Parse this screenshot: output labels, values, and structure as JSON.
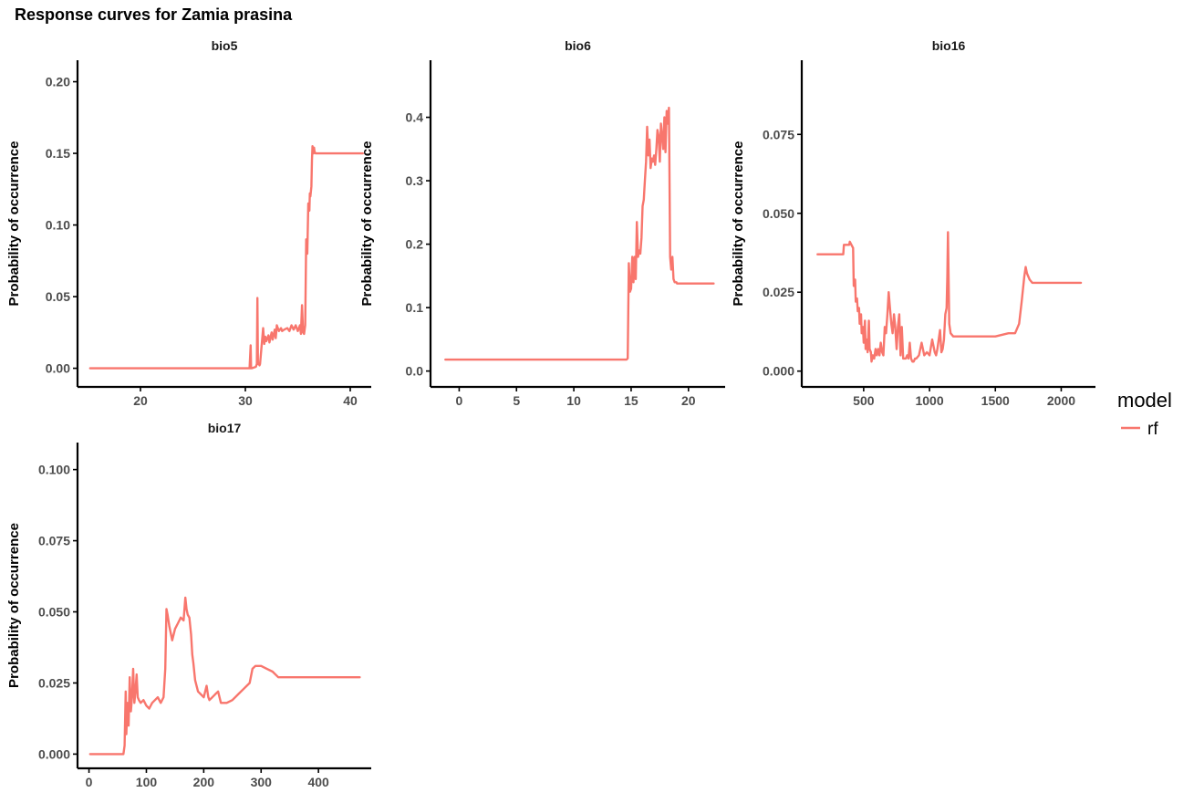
{
  "title": "Response curves for Zamia prasina",
  "legend": {
    "title": "model",
    "items": [
      {
        "label": "rf",
        "color": "#F8766D"
      }
    ]
  },
  "chart_data": [
    {
      "type": "line",
      "panel": "bio5",
      "ylabel": "Probability of occurrence",
      "xlim": [
        14,
        42
      ],
      "ylim": [
        -0.013,
        0.215
      ],
      "xticks": [
        20,
        30,
        40
      ],
      "yticks": [
        0.0,
        0.05,
        0.1,
        0.15,
        0.2
      ],
      "ytick_labels": [
        "0.00",
        "0.05",
        "0.10",
        "0.15",
        "0.20"
      ],
      "series": [
        {
          "name": "rf",
          "x": [
            15.2,
            30.4,
            30.5,
            30.55,
            30.6,
            31.0,
            31.1,
            31.15,
            31.2,
            31.3,
            31.35,
            31.4,
            31.6,
            31.7,
            31.8,
            31.9,
            32.0,
            32.2,
            32.3,
            32.5,
            32.6,
            32.8,
            32.9,
            33.0,
            33.2,
            33.4,
            33.5,
            33.7,
            34.0,
            34.2,
            34.4,
            34.6,
            34.8,
            35.0,
            35.2,
            35.3,
            35.4,
            35.5,
            35.6,
            35.7,
            35.8,
            35.9,
            36.0,
            36.1,
            36.15,
            36.2,
            36.3,
            36.35,
            36.4,
            36.5,
            36.55,
            36.6,
            36.7,
            36.8,
            41.2
          ],
          "y": [
            0.0,
            0.0,
            0.016,
            0.0,
            0.0,
            0.001,
            0.003,
            0.049,
            0.003,
            0.003,
            0.002,
            0.003,
            0.02,
            0.028,
            0.017,
            0.022,
            0.019,
            0.023,
            0.018,
            0.025,
            0.02,
            0.027,
            0.021,
            0.03,
            0.026,
            0.028,
            0.026,
            0.027,
            0.028,
            0.026,
            0.03,
            0.027,
            0.03,
            0.026,
            0.03,
            0.024,
            0.044,
            0.025,
            0.024,
            0.03,
            0.09,
            0.08,
            0.115,
            0.11,
            0.122,
            0.12,
            0.127,
            0.145,
            0.155,
            0.15,
            0.154,
            0.151,
            0.15,
            0.15,
            0.15
          ]
        }
      ]
    },
    {
      "type": "line",
      "panel": "bio6",
      "ylabel": "Probability of occurrence",
      "xlim": [
        -2.5,
        23.2
      ],
      "ylim": [
        -0.025,
        0.49
      ],
      "xticks": [
        0,
        5,
        10,
        15,
        20
      ],
      "yticks": [
        0.0,
        0.1,
        0.2,
        0.3,
        0.4
      ],
      "ytick_labels": [
        "0.0",
        "0.1",
        "0.2",
        "0.3",
        "0.4"
      ],
      "series": [
        {
          "name": "rf",
          "x": [
            -1.2,
            14.6,
            14.7,
            14.8,
            14.9,
            15.0,
            15.1,
            15.2,
            15.3,
            15.4,
            15.5,
            15.6,
            15.7,
            15.8,
            15.9,
            16.0,
            16.1,
            16.2,
            16.3,
            16.4,
            16.5,
            16.6,
            16.7,
            16.8,
            16.9,
            17.0,
            17.1,
            17.2,
            17.3,
            17.4,
            17.5,
            17.6,
            17.7,
            17.8,
            17.9,
            18.0,
            18.1,
            18.2,
            18.3,
            18.4,
            18.5,
            18.6,
            18.7,
            18.8,
            18.9,
            18.95,
            19.0,
            19.05,
            19.1,
            19.2,
            19.3,
            19.5,
            22.2
          ],
          "y": [
            0.018,
            0.018,
            0.02,
            0.17,
            0.125,
            0.13,
            0.18,
            0.14,
            0.18,
            0.145,
            0.235,
            0.18,
            0.19,
            0.185,
            0.21,
            0.26,
            0.27,
            0.3,
            0.33,
            0.385,
            0.34,
            0.365,
            0.32,
            0.335,
            0.33,
            0.34,
            0.325,
            0.35,
            0.38,
            0.37,
            0.33,
            0.39,
            0.37,
            0.35,
            0.4,
            0.345,
            0.41,
            0.39,
            0.415,
            0.18,
            0.16,
            0.18,
            0.145,
            0.14,
            0.14,
            0.14,
            0.138,
            0.138,
            0.138,
            0.138,
            0.138,
            0.138,
            0.138
          ]
        }
      ]
    },
    {
      "type": "line",
      "panel": "bio16",
      "ylabel": "Probability of occurrence",
      "xlim": [
        30,
        2260
      ],
      "ylim": [
        -0.005,
        0.0985
      ],
      "xticks": [
        500,
        1000,
        1500,
        2000
      ],
      "yticks": [
        0.0,
        0.025,
        0.05,
        0.075
      ],
      "ytick_labels": [
        "0.000",
        "0.025",
        "0.050",
        "0.075"
      ],
      "series": [
        {
          "name": "rf",
          "x": [
            150,
            345,
            350,
            390,
            395,
            420,
            425,
            435,
            440,
            450,
            455,
            465,
            470,
            480,
            485,
            495,
            500,
            510,
            515,
            525,
            530,
            540,
            545,
            555,
            560,
            570,
            580,
            590,
            600,
            610,
            620,
            630,
            640,
            650,
            660,
            670,
            680,
            690,
            700,
            710,
            720,
            730,
            740,
            750,
            760,
            770,
            780,
            790,
            800,
            810,
            820,
            830,
            840,
            850,
            860,
            870,
            880,
            890,
            900,
            920,
            940,
            960,
            980,
            1000,
            1020,
            1040,
            1050,
            1060,
            1080,
            1090,
            1100,
            1110,
            1120,
            1130,
            1135,
            1140,
            1150,
            1160,
            1180,
            1200,
            1300,
            1500,
            1600,
            1650,
            1680,
            1700,
            1720,
            1730,
            1740,
            1760,
            1780,
            2150
          ],
          "y": [
            0.037,
            0.037,
            0.04,
            0.04,
            0.041,
            0.039,
            0.027,
            0.029,
            0.022,
            0.023,
            0.019,
            0.02,
            0.015,
            0.018,
            0.012,
            0.014,
            0.009,
            0.016,
            0.007,
            0.01,
            0.006,
            0.016,
            0.007,
            0.006,
            0.003,
            0.005,
            0.004,
            0.007,
            0.005,
            0.007,
            0.005,
            0.009,
            0.006,
            0.005,
            0.014,
            0.012,
            0.018,
            0.025,
            0.02,
            0.015,
            0.012,
            0.018,
            0.014,
            0.007,
            0.014,
            0.018,
            0.005,
            0.014,
            0.004,
            0.004,
            0.004,
            0.005,
            0.004,
            0.009,
            0.004,
            0.003,
            0.003,
            0.004,
            0.004,
            0.005,
            0.009,
            0.005,
            0.006,
            0.005,
            0.01,
            0.006,
            0.005,
            0.007,
            0.013,
            0.006,
            0.007,
            0.01,
            0.018,
            0.02,
            0.03,
            0.044,
            0.015,
            0.012,
            0.011,
            0.011,
            0.011,
            0.011,
            0.012,
            0.012,
            0.015,
            0.022,
            0.03,
            0.033,
            0.031,
            0.029,
            0.028,
            0.028
          ]
        }
      ]
    },
    {
      "type": "line",
      "panel": "bio17",
      "ylabel": "Probability of occurrence",
      "xlim": [
        -20,
        492
      ],
      "ylim": [
        -0.005,
        0.1095
      ],
      "xticks": [
        0,
        100,
        200,
        300,
        400
      ],
      "yticks": [
        0.0,
        0.025,
        0.05,
        0.075,
        0.1
      ],
      "ytick_labels": [
        "0.000",
        "0.025",
        "0.050",
        "0.075",
        "0.100"
      ],
      "series": [
        {
          "name": "rf",
          "x": [
            2,
            60,
            62,
            64,
            65,
            67,
            69,
            71,
            73,
            75,
            77,
            79,
            81,
            83,
            85,
            87,
            90,
            95,
            100,
            105,
            110,
            115,
            120,
            125,
            130,
            133,
            135,
            137,
            140,
            145,
            150,
            155,
            160,
            165,
            168,
            170,
            172,
            175,
            178,
            180,
            182,
            185,
            190,
            195,
            200,
            205,
            208,
            210,
            215,
            220,
            225,
            230,
            240,
            250,
            260,
            270,
            275,
            280,
            285,
            290,
            300,
            310,
            320,
            330,
            340,
            350,
            400,
            472
          ],
          "y": [
            0.0,
            0.0,
            0.003,
            0.022,
            0.007,
            0.018,
            0.01,
            0.027,
            0.015,
            0.02,
            0.03,
            0.018,
            0.022,
            0.028,
            0.02,
            0.019,
            0.018,
            0.019,
            0.017,
            0.016,
            0.018,
            0.019,
            0.02,
            0.018,
            0.02,
            0.03,
            0.051,
            0.049,
            0.045,
            0.04,
            0.044,
            0.046,
            0.048,
            0.047,
            0.055,
            0.051,
            0.049,
            0.048,
            0.042,
            0.035,
            0.032,
            0.026,
            0.022,
            0.021,
            0.02,
            0.024,
            0.02,
            0.019,
            0.02,
            0.021,
            0.022,
            0.018,
            0.018,
            0.019,
            0.021,
            0.023,
            0.024,
            0.025,
            0.03,
            0.031,
            0.031,
            0.03,
            0.029,
            0.027,
            0.027,
            0.027,
            0.027,
            0.027
          ]
        }
      ]
    }
  ]
}
